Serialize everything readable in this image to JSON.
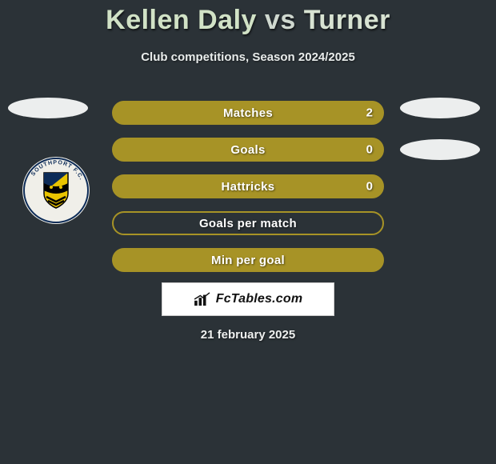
{
  "title": {
    "player1": "Kellen Daly",
    "vs": "vs",
    "player2": "Turner"
  },
  "subtitle": "Club competitions, Season 2024/2025",
  "colors": {
    "background": "#2b3237",
    "bar_fill": "#a79326",
    "bar_border": "#a79326",
    "oval": "#eceeee",
    "crest_bg": "#f0efe9",
    "text": "#ffffff"
  },
  "rows": [
    {
      "label": "Matches",
      "value": "2",
      "variant": "filled"
    },
    {
      "label": "Goals",
      "value": "0",
      "variant": "filled"
    },
    {
      "label": "Hattricks",
      "value": "0",
      "variant": "filled"
    },
    {
      "label": "Goals per match",
      "value": "",
      "variant": "outline"
    },
    {
      "label": "Min per goal",
      "value": "",
      "variant": "filled"
    }
  ],
  "brand": "FcTables.com",
  "date": "21 february 2025",
  "crest": {
    "ring_text": "SOUTHPORT F.C.",
    "primary": "#0c2b57",
    "accent": "#e9c400",
    "black": "#000000"
  }
}
